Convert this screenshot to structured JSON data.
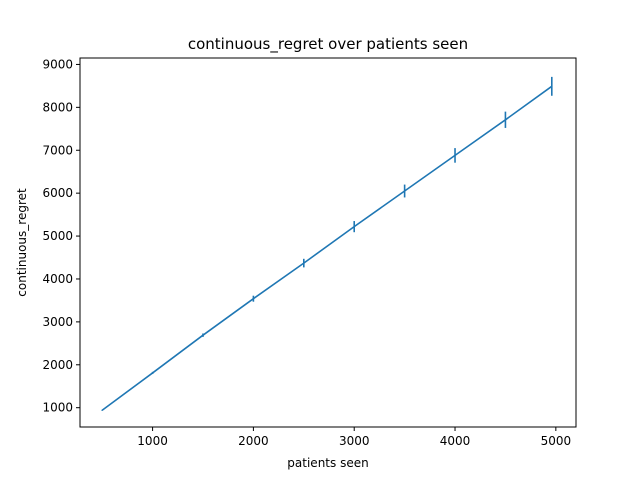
{
  "chart_data": {
    "type": "line",
    "title": "continuous_regret over patients seen",
    "xlabel": "patients seen",
    "ylabel": "continuous_regret",
    "xlim": [
      280,
      5200
    ],
    "ylim": [
      550,
      9150
    ],
    "xticks": [
      1000,
      2000,
      3000,
      4000,
      5000
    ],
    "yticks": [
      1000,
      2000,
      3000,
      4000,
      5000,
      6000,
      7000,
      8000,
      9000
    ],
    "grid": false,
    "color": "#1f77b4",
    "series": [
      {
        "x": [
          500,
          1000,
          1500,
          2000,
          2500,
          3000,
          3500,
          4000,
          4500,
          4960
        ],
        "y": [
          940,
          1810,
          2690,
          3540,
          4370,
          5220,
          6050,
          6880,
          7710,
          8490
        ],
        "yerr": [
          12,
          25,
          40,
          70,
          100,
          130,
          150,
          170,
          190,
          220
        ]
      }
    ]
  }
}
